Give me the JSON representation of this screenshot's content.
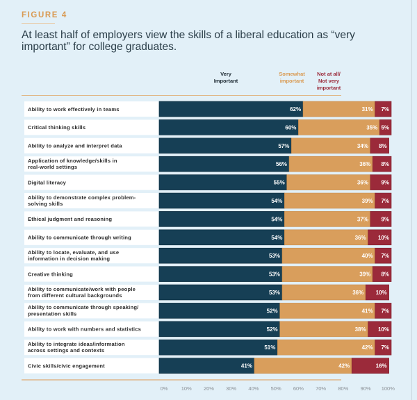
{
  "figure_label": "FIGURE 4",
  "chart_data": {
    "type": "bar",
    "orientation": "horizontal",
    "stacked": true,
    "title": "At least half of employers view the skills of a liberal education as “very important” for college graduates.",
    "xlabel": "",
    "ylabel": "",
    "xlim": [
      0,
      100
    ],
    "x_ticks": [
      "0%",
      "10%",
      "20%",
      "30%",
      "40%",
      "50%",
      "60%",
      "70%",
      "80%",
      "90%",
      "100%"
    ],
    "legend_position": "top-right",
    "categories": [
      "Ability to work effectively in teams",
      "Critical thinking skills",
      "Ability to analyze and interpret data",
      "Application of knowledge/skills in real-world settings",
      "Digital literacy",
      "Ability to demonstrate complex problem-solving skills",
      "Ethical judgment and reasoning",
      "Ability to communicate through writing",
      "Ability to locate, evaluate, and use information in decision making",
      "Creative thinking",
      "Ability to communicate/work with people from different cultural backgrounds",
      "Ability to communicate through speaking/presentation skills",
      "Ability to work with numbers and statistics",
      "Ability to integrate ideas/information across settings and contexts",
      "Civic skills/civic engagement"
    ],
    "category_lines": [
      [
        "Ability to work effectively in teams"
      ],
      [
        "Critical thinking skills"
      ],
      [
        "Ability to analyze and interpret data"
      ],
      [
        "Application of knowledge/skills in",
        "real-world settings"
      ],
      [
        "Digital literacy"
      ],
      [
        "Ability to demonstrate complex problem-",
        "solving skills"
      ],
      [
        "Ethical judgment and reasoning"
      ],
      [
        "Ability to communicate through writing"
      ],
      [
        "Ability to locate, evaluate, and use",
        "information in decision making"
      ],
      [
        "Creative thinking"
      ],
      [
        "Ability to communicate/work with people",
        "from different cultural backgrounds"
      ],
      [
        "Ability to communicate through speaking/",
        "presentation skills"
      ],
      [
        "Ability to work with numbers and statistics"
      ],
      [
        "Ability to integrate ideas/information",
        "across settings and contexts"
      ],
      [
        "Civic skills/civic engagement"
      ]
    ],
    "series": [
      {
        "name": "Very Important",
        "legend_lines": [
          "Very",
          "Important"
        ],
        "color": "#163f55",
        "values": [
          62,
          60,
          57,
          56,
          55,
          54,
          54,
          54,
          53,
          53,
          53,
          52,
          52,
          51,
          41
        ]
      },
      {
        "name": "Somewhat important",
        "legend_lines": [
          "Somewhat",
          "important"
        ],
        "color": "#d99e5c",
        "values": [
          31,
          35,
          34,
          36,
          36,
          39,
          37,
          36,
          40,
          39,
          36,
          41,
          38,
          42,
          42
        ]
      },
      {
        "name": "Not at all/Not very important",
        "legend_lines": [
          "Not at all/",
          "Not very",
          "important"
        ],
        "color": "#9b2a3a",
        "values": [
          7,
          5,
          8,
          8,
          9,
          7,
          9,
          10,
          7,
          8,
          10,
          7,
          10,
          7,
          16
        ]
      }
    ]
  }
}
